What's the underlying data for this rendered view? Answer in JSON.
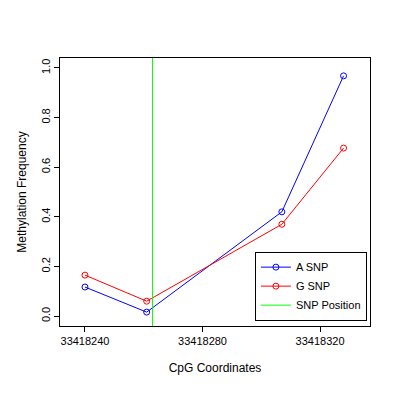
{
  "chart_data": {
    "type": "line",
    "x_label": "CpG Coordinates",
    "y_label": "Methylation Frequency",
    "series": [
      {
        "name": "A SNP",
        "color": "#0000ff",
        "marker": "circle-open",
        "line_style": "solid",
        "x": [
          33418240,
          33418261,
          33418307,
          33418328
        ],
        "values": [
          0.117,
          0.016,
          0.42,
          0.968
        ]
      },
      {
        "name": "G SNP",
        "color": "#ff0000",
        "marker": "circle-open",
        "line_style": "solid",
        "x": [
          33418240,
          33418261,
          33418307,
          33418328
        ],
        "values": [
          0.165,
          0.06,
          0.37,
          0.677
        ]
      },
      {
        "name": "SNP Position",
        "color": "#00ff00",
        "marker": "none",
        "line_style": "solid",
        "x": [
          33418263,
          33418263
        ],
        "values": [
          -0.04,
          1.04
        ]
      }
    ],
    "xlim": [
      33418231.5,
      33418337
    ],
    "xticks": [
      33418240,
      33418280,
      33418320
    ],
    "ylim": [
      -0.04,
      1.04
    ],
    "yticks": [
      {
        "value": 0,
        "label": "0.0"
      },
      0.2,
      0.4,
      0.6,
      0.8,
      {
        "value": 1,
        "label": "1.0"
      }
    ],
    "grid": false,
    "legend": "lower right"
  }
}
